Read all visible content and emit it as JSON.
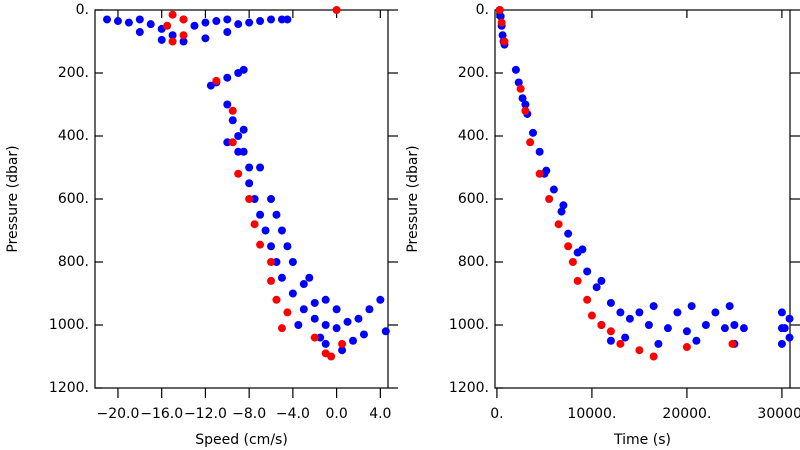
{
  "chart_data": [
    {
      "type": "scatter",
      "xlabel": "Speed (cm/s)",
      "ylabel": "Pressure (dbar)",
      "xlim": [
        -22.1,
        4.7
      ],
      "ylim": [
        0,
        1200
      ],
      "y_inverted": true,
      "xticks": [
        {
          "value": -20,
          "label": "−20.0"
        },
        {
          "value": -16,
          "label": "−16.0"
        },
        {
          "value": -12,
          "label": "−12.0"
        },
        {
          "value": -8,
          "label": "−8.0"
        },
        {
          "value": -4,
          "label": "−4.0"
        },
        {
          "value": 0,
          "label": "0.0"
        },
        {
          "value": 4,
          "label": "4.0"
        }
      ],
      "yticks": [
        {
          "value": 0,
          "label": "0."
        },
        {
          "value": 200,
          "label": "200."
        },
        {
          "value": 400,
          "label": "400."
        },
        {
          "value": 600,
          "label": "600."
        },
        {
          "value": 800,
          "label": "800."
        },
        {
          "value": 1000,
          "label": "1000."
        },
        {
          "value": 1200,
          "label": "1200."
        }
      ],
      "series": [
        {
          "color": "#0000ff",
          "x": [
            -21,
            -20,
            -19,
            -18,
            -17,
            -16,
            -15,
            -14,
            -13,
            -12,
            -11,
            -10,
            -9,
            -8,
            -7,
            -6,
            -5,
            -18,
            -16,
            -12,
            -10,
            -14,
            -4.5,
            -11.5,
            -11,
            -10,
            -9,
            -8.5,
            -10,
            -9.5,
            -9,
            -8.5,
            -8,
            -8,
            -7.5,
            -7,
            -6.5,
            -6,
            -5.5,
            -5,
            -4,
            -3,
            -2,
            -1,
            0,
            1,
            2,
            -9,
            -7,
            -6,
            -5,
            -4,
            -3,
            -2,
            1.5,
            -1,
            3,
            4,
            4.5,
            0.5,
            -10,
            -8.5,
            -5.5,
            -4.5,
            -2.5,
            -1,
            0,
            2.5,
            -3.5,
            -1.5
          ],
          "values": [
            30,
            35,
            40,
            30,
            45,
            60,
            80,
            100,
            50,
            40,
            35,
            30,
            45,
            40,
            35,
            30,
            30,
            70,
            95,
            90,
            70,
            30,
            30,
            240,
            230,
            215,
            200,
            190,
            300,
            350,
            400,
            450,
            500,
            550,
            600,
            650,
            700,
            750,
            800,
            850,
            900,
            950,
            980,
            1000,
            1010,
            990,
            980,
            450,
            500,
            600,
            700,
            800,
            870,
            930,
            1050,
            1060,
            950,
            920,
            1020,
            1080,
            420,
            380,
            650,
            750,
            850,
            920,
            950,
            1030,
            1000,
            1040
          ]
        },
        {
          "color": "#ff0000",
          "x": [
            -15,
            -14,
            -15.5,
            -14,
            -15,
            -11,
            -9.5,
            -9.5,
            -9,
            -8,
            -7.5,
            -7,
            -6,
            -6,
            -5.5,
            -4.5,
            -5,
            -2,
            -1,
            -0.5,
            0.5,
            0
          ],
          "values": [
            15,
            30,
            50,
            80,
            100,
            225,
            320,
            420,
            520,
            600,
            680,
            745,
            800,
            860,
            920,
            960,
            1010,
            1040,
            1090,
            1100,
            1060,
            0
          ]
        }
      ]
    },
    {
      "type": "scatter",
      "xlabel": "Time (s)",
      "ylabel": "Pressure (dbar)",
      "xlim": [
        -200,
        30850
      ],
      "ylim": [
        0,
        1200
      ],
      "y_inverted": true,
      "xticks": [
        {
          "value": 0,
          "label": "0."
        },
        {
          "value": 10000,
          "label": "10000."
        },
        {
          "value": 20000,
          "label": "20000."
        },
        {
          "value": 30000,
          "label": "30000."
        }
      ],
      "yticks": [
        {
          "value": 0,
          "label": "0."
        },
        {
          "value": 200,
          "label": "200."
        },
        {
          "value": 400,
          "label": "400."
        },
        {
          "value": 600,
          "label": "600."
        },
        {
          "value": 800,
          "label": "800."
        },
        {
          "value": 1000,
          "label": "1000."
        },
        {
          "value": 1200,
          "label": "1200."
        }
      ],
      "series": [
        {
          "color": "#0000ff",
          "x": [
            300,
            400,
            500,
            600,
            700,
            800,
            2000,
            2300,
            2700,
            3200,
            3800,
            4500,
            5200,
            6000,
            6800,
            7500,
            8500,
            9500,
            10500,
            12000,
            13000,
            14000,
            16000,
            18000,
            20000,
            22000,
            24000,
            25000,
            12000,
            15000,
            17000,
            19000,
            21000,
            23000,
            25000,
            11000,
            13500,
            16500,
            20500,
            24500,
            26000,
            30000,
            30000,
            30000,
            30300,
            30800,
            30800,
            3000,
            5000,
            7000,
            9000,
            11000
          ],
          "values": [
            0,
            20,
            50,
            80,
            100,
            110,
            190,
            230,
            280,
            330,
            390,
            450,
            510,
            570,
            640,
            710,
            770,
            830,
            880,
            930,
            960,
            980,
            1000,
            1010,
            1020,
            1000,
            1010,
            1000,
            1050,
            960,
            1060,
            960,
            1050,
            960,
            1060,
            1000,
            1040,
            940,
            940,
            940,
            1010,
            1010,
            960,
            1060,
            1010,
            980,
            1040,
            300,
            520,
            620,
            760,
            860
          ]
        },
        {
          "color": "#ff0000",
          "x": [
            300,
            500,
            800,
            2500,
            3000,
            3500,
            4500,
            5500,
            6500,
            7500,
            8000,
            8500,
            9500,
            10000,
            11000,
            12000,
            13000,
            15000,
            16500,
            20000,
            24800
          ],
          "values": [
            0,
            40,
            100,
            250,
            320,
            420,
            520,
            600,
            680,
            750,
            800,
            860,
            920,
            970,
            1000,
            1020,
            1060,
            1080,
            1100,
            1070,
            1060
          ]
        }
      ]
    }
  ]
}
